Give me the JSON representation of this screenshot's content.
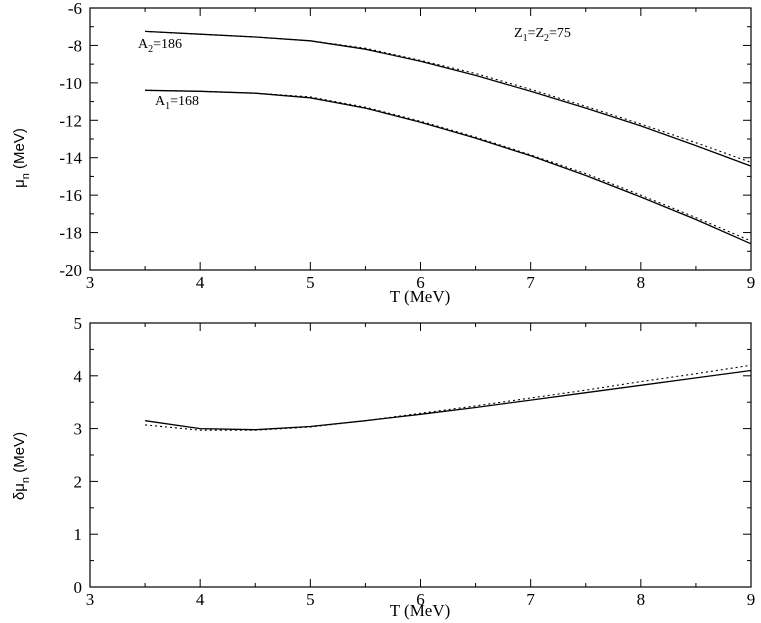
{
  "chart_data": [
    {
      "type": "line",
      "xlabel": "T (MeV)",
      "ylabel": "μn (MeV)",
      "ylabel_main": "μ",
      "ylabel_sub": "n",
      "ylabel_unit": " (MeV)",
      "xlim": [
        3,
        9
      ],
      "ylim": [
        -20,
        -6
      ],
      "xticks": [
        3,
        4,
        5,
        6,
        7,
        8,
        9
      ],
      "yticks": [
        -20,
        -18,
        -16,
        -14,
        -12,
        -10,
        -8,
        -6
      ],
      "xtick_labels": [
        "3",
        "4",
        "5",
        "6",
        "7",
        "8",
        "9"
      ],
      "ytick_labels": [
        "-20",
        "-18",
        "-16",
        "-14",
        "-12",
        "-10",
        "-8",
        "-6"
      ],
      "annotations": [
        {
          "main": "A",
          "sub": "2",
          "rest": "=186"
        },
        {
          "main": "A",
          "sub": "1",
          "rest": "=168"
        },
        {
          "main1": "Z",
          "sub1": "1",
          "mid": "=Z",
          "sub2": "2",
          "rest": "=75"
        }
      ],
      "x": [
        3.5,
        4.0,
        4.5,
        5.0,
        5.5,
        6.0,
        6.5,
        7.0,
        7.5,
        8.0,
        8.5,
        9.0
      ],
      "series": [
        {
          "style": "solid",
          "values": [
            -7.25,
            -7.4,
            -7.55,
            -7.75,
            -8.2,
            -8.85,
            -9.6,
            -10.45,
            -11.35,
            -12.3,
            -13.35,
            -14.45
          ]
        },
        {
          "style": "dotted",
          "values": [
            -7.25,
            -7.4,
            -7.55,
            -7.75,
            -8.15,
            -8.8,
            -9.5,
            -10.35,
            -11.25,
            -12.2,
            -13.2,
            -14.25
          ]
        },
        {
          "style": "solid",
          "values": [
            -10.4,
            -10.45,
            -10.55,
            -10.8,
            -11.35,
            -12.1,
            -12.95,
            -13.9,
            -14.95,
            -16.1,
            -17.3,
            -18.6
          ]
        },
        {
          "style": "dotted",
          "values": [
            -10.4,
            -10.45,
            -10.55,
            -10.75,
            -11.3,
            -12.05,
            -12.9,
            -13.85,
            -14.85,
            -16.0,
            -17.2,
            -18.45
          ]
        }
      ]
    },
    {
      "type": "line",
      "xlabel": "T (MeV)",
      "ylabel": "δμn (MeV)",
      "ylabel_main": "δμ",
      "ylabel_sub": "n",
      "ylabel_unit": " (MeV)",
      "xlim": [
        3,
        9
      ],
      "ylim": [
        0,
        5
      ],
      "xticks": [
        3,
        4,
        5,
        6,
        7,
        8,
        9
      ],
      "yticks": [
        0,
        1,
        2,
        3,
        4,
        5
      ],
      "xtick_labels": [
        "3",
        "4",
        "5",
        "6",
        "7",
        "8",
        "9"
      ],
      "ytick_labels": [
        "0",
        "1",
        "2",
        "3",
        "4",
        "5"
      ],
      "x": [
        3.5,
        4.0,
        4.5,
        5.0,
        5.5,
        6.0,
        6.5,
        7.0,
        7.5,
        8.0,
        8.5,
        9.0
      ],
      "series": [
        {
          "style": "solid",
          "values": [
            3.15,
            3.0,
            2.98,
            3.04,
            3.15,
            3.27,
            3.4,
            3.54,
            3.68,
            3.82,
            3.96,
            4.1
          ]
        },
        {
          "style": "dotted",
          "values": [
            3.07,
            2.97,
            2.97,
            3.03,
            3.15,
            3.29,
            3.43,
            3.58,
            3.73,
            3.89,
            4.04,
            4.2
          ]
        }
      ]
    }
  ]
}
